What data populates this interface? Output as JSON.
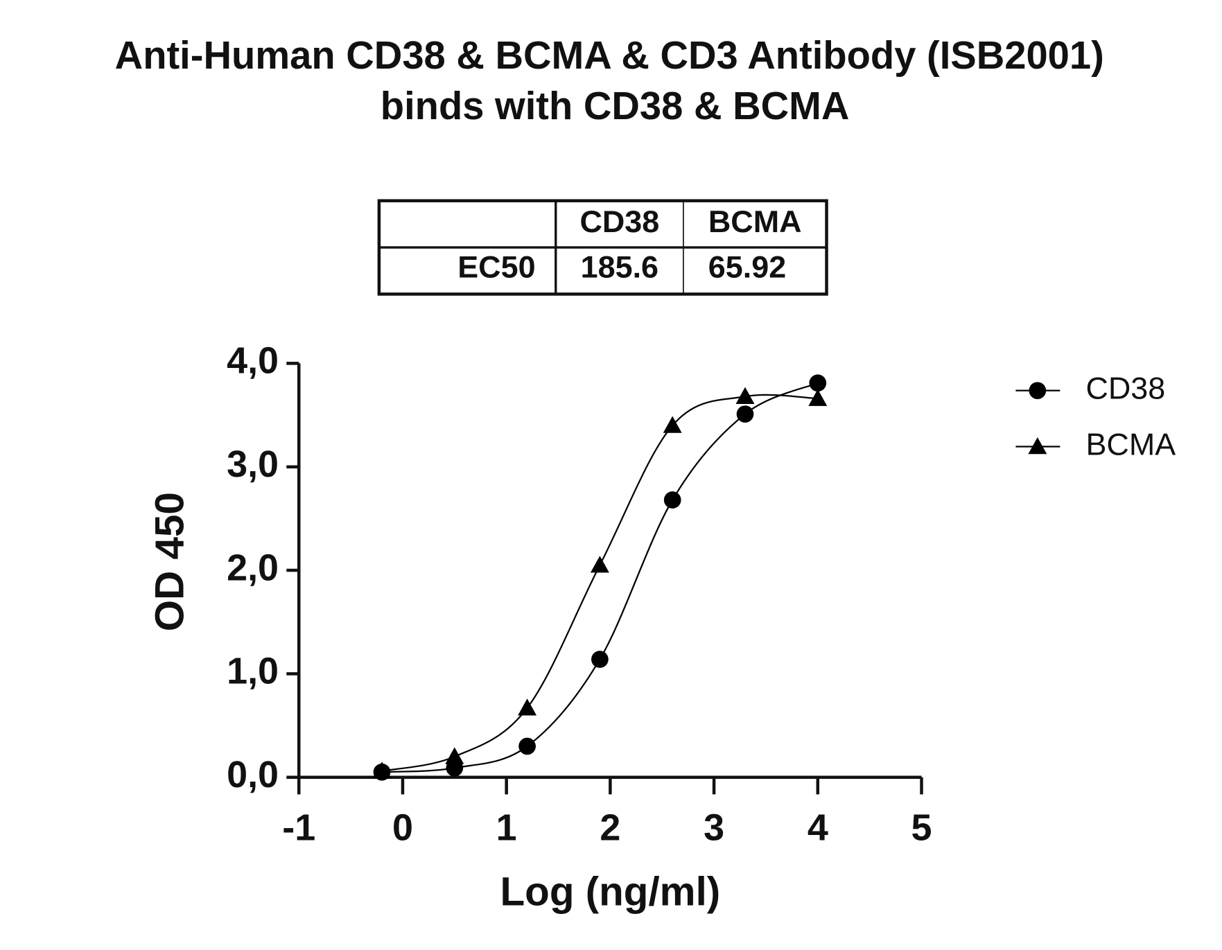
{
  "chart_data": {
    "type": "scatter",
    "title": "Anti-Human CD38 & BCMA & CD3 Antibody (ISB2001)",
    "subtitle": "binds with CD38 & BCMA",
    "xlabel": "Log (ng/ml)",
    "ylabel": "OD 450",
    "xlim": [
      -1,
      5
    ],
    "xticks": [
      -1,
      0,
      1,
      2,
      3,
      4,
      5
    ],
    "ylim": [
      0,
      4
    ],
    "yticks": [
      {
        "value": 0,
        "label": "0,0"
      },
      {
        "value": 1,
        "label": "1,0"
      },
      {
        "value": 2,
        "label": "2,0"
      },
      {
        "value": 3,
        "label": "3,0"
      },
      {
        "value": 4,
        "label": "4,0"
      }
    ],
    "legend": "right",
    "series": [
      {
        "name": "CD38",
        "color": "#000000",
        "marker": "circle",
        "x": [
          -0.2,
          0.5,
          1.2,
          1.9,
          2.6,
          3.3,
          4.0
        ],
        "values": [
          0.05,
          0.09,
          0.3,
          1.14,
          2.68,
          3.51,
          3.81
        ]
      },
      {
        "name": "BCMA",
        "color": "#000000",
        "marker": "triangle",
        "x": [
          -0.2,
          0.5,
          1.2,
          1.9,
          2.6,
          3.3,
          4.0
        ],
        "values": [
          0.06,
          0.2,
          0.67,
          2.05,
          3.4,
          3.68,
          3.66
        ]
      }
    ],
    "ec50_table": {
      "header": [
        "CD38",
        "BCMA"
      ],
      "rows": [
        [
          "EC50",
          "185.6",
          "65.92"
        ]
      ]
    }
  }
}
